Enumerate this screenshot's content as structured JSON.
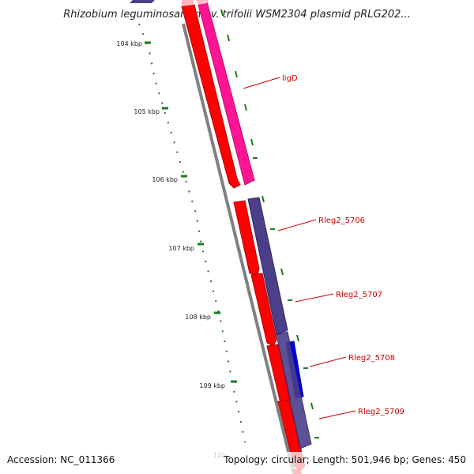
{
  "title": "Rhizobium leguminosarum bv. trifolii WSM2304 plasmid pRLG202...",
  "footer": {
    "accession": "Accession: NC_011366",
    "summary": "Topology: circular; Length: 501,946 bp; Genes: 450"
  },
  "ticks": [
    "104 kbp",
    "105 kbp",
    "106 kbp",
    "107 kbp",
    "108 kbp",
    "109 kbp",
    "110"
  ],
  "genes": [
    {
      "label": "ligD",
      "color": "#ff1493"
    },
    {
      "label": "Rleg2_5706",
      "color": "#4b3f8a"
    },
    {
      "label": "Rleg2_5707",
      "color": "#4b3f8a"
    },
    {
      "label": "Rleg2_5708",
      "color": "#0000ee"
    },
    {
      "label": "Rleg2_5709",
      "color": "#4b3f8a"
    }
  ],
  "colors": {
    "cds": "#ff0000",
    "backbone": "#808080",
    "ticks": "#1f7a1f",
    "label_text": "#cc0000"
  }
}
